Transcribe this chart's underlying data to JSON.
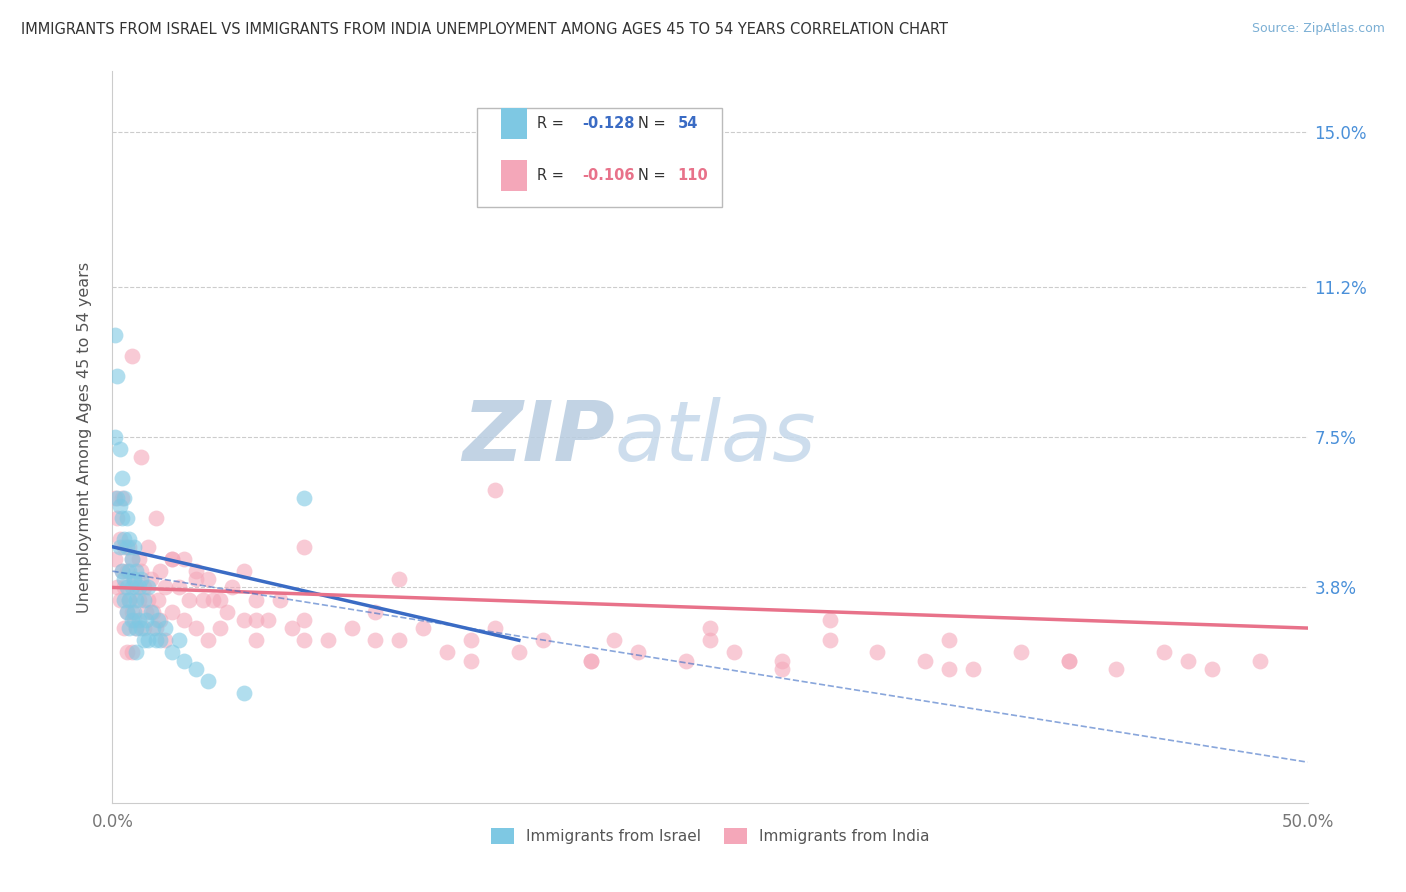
{
  "title": "IMMIGRANTS FROM ISRAEL VS IMMIGRANTS FROM INDIA UNEMPLOYMENT AMONG AGES 45 TO 54 YEARS CORRELATION CHART",
  "source": "Source: ZipAtlas.com",
  "ylabel": "Unemployment Among Ages 45 to 54 years",
  "xlim": [
    0.0,
    0.5
  ],
  "ylim": [
    -0.015,
    0.165
  ],
  "yticks": [
    0.038,
    0.075,
    0.112,
    0.15
  ],
  "ytick_labels": [
    "3.8%",
    "7.5%",
    "11.2%",
    "15.0%"
  ],
  "color_israel": "#7EC8E3",
  "color_india": "#F4A7B9",
  "color_israel_line": "#3A6BC4",
  "color_india_line": "#E8728A",
  "color_tick": "#4A90D9",
  "watermark_zip": "ZIP",
  "watermark_atlas": "atlas",
  "watermark_color_zip": "#C5D8EC",
  "watermark_color_atlas": "#B8CBE0",
  "israel_x": [
    0.001,
    0.001,
    0.002,
    0.002,
    0.003,
    0.003,
    0.003,
    0.004,
    0.004,
    0.004,
    0.005,
    0.005,
    0.005,
    0.005,
    0.006,
    0.006,
    0.006,
    0.006,
    0.007,
    0.007,
    0.007,
    0.007,
    0.008,
    0.008,
    0.008,
    0.009,
    0.009,
    0.009,
    0.01,
    0.01,
    0.01,
    0.01,
    0.011,
    0.011,
    0.012,
    0.012,
    0.013,
    0.013,
    0.014,
    0.015,
    0.015,
    0.016,
    0.017,
    0.018,
    0.019,
    0.02,
    0.022,
    0.025,
    0.028,
    0.03,
    0.035,
    0.04,
    0.055,
    0.08
  ],
  "israel_y": [
    0.1,
    0.075,
    0.09,
    0.06,
    0.072,
    0.058,
    0.048,
    0.065,
    0.055,
    0.042,
    0.06,
    0.05,
    0.04,
    0.035,
    0.055,
    0.048,
    0.038,
    0.032,
    0.05,
    0.042,
    0.035,
    0.028,
    0.045,
    0.038,
    0.03,
    0.048,
    0.04,
    0.032,
    0.042,
    0.035,
    0.028,
    0.022,
    0.038,
    0.03,
    0.04,
    0.028,
    0.035,
    0.025,
    0.03,
    0.038,
    0.025,
    0.032,
    0.028,
    0.025,
    0.03,
    0.025,
    0.028,
    0.022,
    0.025,
    0.02,
    0.018,
    0.015,
    0.012,
    0.06
  ],
  "india_x": [
    0.001,
    0.001,
    0.002,
    0.002,
    0.003,
    0.003,
    0.004,
    0.004,
    0.005,
    0.005,
    0.005,
    0.006,
    0.006,
    0.006,
    0.007,
    0.007,
    0.008,
    0.008,
    0.008,
    0.009,
    0.009,
    0.01,
    0.01,
    0.011,
    0.011,
    0.012,
    0.013,
    0.013,
    0.014,
    0.015,
    0.015,
    0.016,
    0.017,
    0.018,
    0.019,
    0.02,
    0.02,
    0.022,
    0.022,
    0.025,
    0.025,
    0.028,
    0.03,
    0.03,
    0.032,
    0.035,
    0.035,
    0.038,
    0.04,
    0.04,
    0.042,
    0.045,
    0.048,
    0.05,
    0.055,
    0.055,
    0.06,
    0.06,
    0.065,
    0.07,
    0.075,
    0.08,
    0.09,
    0.1,
    0.11,
    0.12,
    0.13,
    0.14,
    0.15,
    0.16,
    0.17,
    0.18,
    0.2,
    0.21,
    0.22,
    0.24,
    0.25,
    0.26,
    0.28,
    0.3,
    0.32,
    0.34,
    0.36,
    0.38,
    0.4,
    0.42,
    0.44,
    0.45,
    0.46,
    0.48,
    0.008,
    0.012,
    0.018,
    0.025,
    0.035,
    0.045,
    0.06,
    0.08,
    0.11,
    0.15,
    0.2,
    0.28,
    0.35,
    0.4,
    0.16,
    0.08,
    0.12,
    0.3,
    0.25,
    0.35
  ],
  "india_y": [
    0.06,
    0.045,
    0.055,
    0.038,
    0.05,
    0.035,
    0.06,
    0.042,
    0.048,
    0.038,
    0.028,
    0.042,
    0.032,
    0.022,
    0.048,
    0.035,
    0.045,
    0.032,
    0.022,
    0.04,
    0.03,
    0.038,
    0.028,
    0.045,
    0.035,
    0.042,
    0.038,
    0.028,
    0.032,
    0.048,
    0.035,
    0.04,
    0.032,
    0.028,
    0.035,
    0.042,
    0.03,
    0.038,
    0.025,
    0.045,
    0.032,
    0.038,
    0.045,
    0.03,
    0.035,
    0.042,
    0.028,
    0.035,
    0.04,
    0.025,
    0.035,
    0.028,
    0.032,
    0.038,
    0.03,
    0.042,
    0.035,
    0.025,
    0.03,
    0.035,
    0.028,
    0.03,
    0.025,
    0.028,
    0.032,
    0.025,
    0.028,
    0.022,
    0.025,
    0.028,
    0.022,
    0.025,
    0.02,
    0.025,
    0.022,
    0.02,
    0.025,
    0.022,
    0.02,
    0.025,
    0.022,
    0.02,
    0.018,
    0.022,
    0.02,
    0.018,
    0.022,
    0.02,
    0.018,
    0.02,
    0.095,
    0.07,
    0.055,
    0.045,
    0.04,
    0.035,
    0.03,
    0.025,
    0.025,
    0.02,
    0.02,
    0.018,
    0.018,
    0.02,
    0.062,
    0.048,
    0.04,
    0.03,
    0.028,
    0.025
  ],
  "israel_line_x0": 0.0,
  "israel_line_x1": 0.17,
  "israel_line_y0": 0.048,
  "israel_line_y1": 0.025,
  "india_line_x0": 0.0,
  "india_line_x1": 0.5,
  "india_line_y0": 0.038,
  "india_line_y1": 0.028,
  "dash_line_x0": 0.0,
  "dash_line_x1": 0.5,
  "dash_line_y0": 0.042,
  "dash_line_y1": -0.005
}
